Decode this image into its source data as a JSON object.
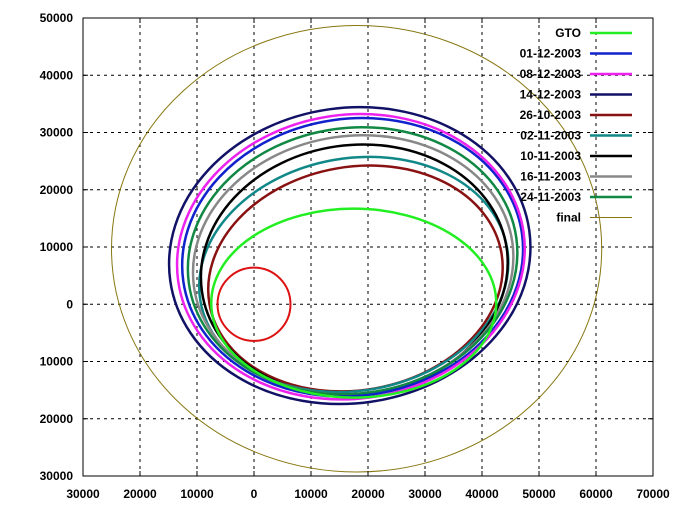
{
  "chart_data": {
    "type": "line",
    "title": "",
    "xlabel": "",
    "ylabel": "",
    "xlim": [
      -30000,
      70000
    ],
    "ylim": [
      -30000,
      50000
    ],
    "x_ticks": [
      -30000,
      -20000,
      -10000,
      0,
      10000,
      20000,
      30000,
      40000,
      50000,
      60000,
      70000
    ],
    "x_tick_labels": [
      "30000",
      "20000",
      "10000",
      "0",
      "10000",
      "20000",
      "30000",
      "40000",
      "50000",
      "60000",
      "70000"
    ],
    "y_ticks": [
      -30000,
      -20000,
      -10000,
      0,
      10000,
      20000,
      30000,
      40000,
      50000
    ],
    "y_tick_labels": [
      "30000",
      "20000",
      "10000",
      "0",
      "10000",
      "20000",
      "30000",
      "40000",
      "50000"
    ],
    "grid": true,
    "legend_position": "top-right",
    "earth": {
      "center": [
        0,
        0
      ],
      "radius": 6400,
      "color": "#dd1111"
    },
    "series": [
      {
        "name": "GTO",
        "color": "#22ee22",
        "width": 2.5,
        "center": [
          17500,
          200
        ],
        "semi_axes": [
          25000,
          16500
        ],
        "rotation_deg": 0
      },
      {
        "name": "01-12-2003",
        "color": "#1122cc",
        "width": 2.5,
        "center": [
          17300,
          8200
        ],
        "semi_axes": [
          30000,
          24200
        ],
        "rotation_deg": -8
      },
      {
        "name": "08-12-2003",
        "color": "#ee22ee",
        "width": 2.5,
        "center": [
          17000,
          8300
        ],
        "semi_axes": [
          30600,
          24800
        ],
        "rotation_deg": -8
      },
      {
        "name": "14-12-2003",
        "color": "#111166",
        "width": 2.5,
        "center": [
          16800,
          8500
        ],
        "semi_axes": [
          31800,
          25800
        ],
        "rotation_deg": -8
      },
      {
        "name": "26-10-2003",
        "color": "#881111",
        "width": 2.5,
        "center": [
          17800,
          4500
        ],
        "semi_axes": [
          26000,
          19500
        ],
        "rotation_deg": -10
      },
      {
        "name": "02-11-2003",
        "color": "#118888",
        "width": 2.5,
        "center": [
          17500,
          5200
        ],
        "semi_axes": [
          27300,
          20300
        ],
        "rotation_deg": -10
      },
      {
        "name": "10-11-2003",
        "color": "#000000",
        "width": 2.5,
        "center": [
          17600,
          6000
        ],
        "semi_axes": [
          27000,
          21800
        ],
        "rotation_deg": -8
      },
      {
        "name": "16-11-2003",
        "color": "#888888",
        "width": 2.5,
        "center": [
          17400,
          6900
        ],
        "semi_axes": [
          28200,
          22500
        ],
        "rotation_deg": -8
      },
      {
        "name": "24-11-2003",
        "color": "#118844",
        "width": 2.5,
        "center": [
          17300,
          7600
        ],
        "semi_axes": [
          29000,
          23200
        ],
        "rotation_deg": -8
      },
      {
        "name": "final",
        "color": "#887711",
        "width": 1,
        "center": [
          18000,
          9700
        ],
        "semi_axes": [
          43000,
          39000
        ],
        "rotation_deg": 0
      }
    ]
  }
}
